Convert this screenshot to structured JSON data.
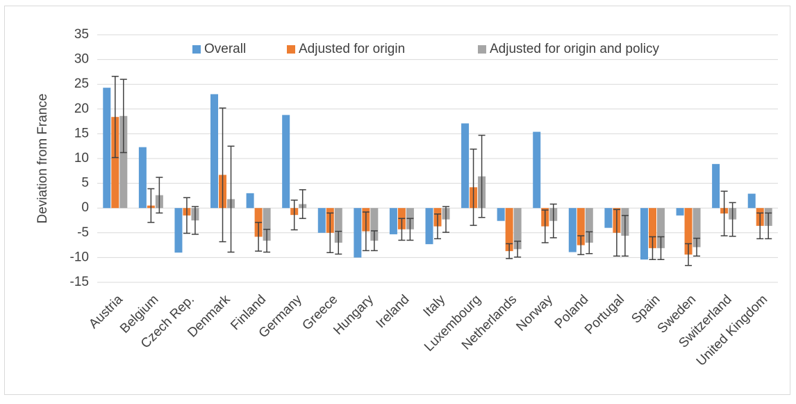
{
  "chart_data": {
    "type": "bar",
    "y_label": "Deviation from France",
    "categories": [
      "Austria",
      "Belgium",
      "Czech Rep.",
      "Denmark",
      "Finland",
      "Germany",
      "Greece",
      "Hungary",
      "Ireland",
      "Italy",
      "Luxembourg",
      "Netherlands",
      "Norway",
      "Poland",
      "Portugal",
      "Spain",
      "Sweden",
      "Switzerland",
      "United Kingdom"
    ],
    "series": [
      {
        "name": "Overall",
        "color": "#5b9bd5",
        "values": [
          24.3,
          12.3,
          -9,
          23,
          3,
          18.8,
          -5,
          -10,
          -5.3,
          -7.3,
          17.1,
          -2.6,
          15.4,
          -8.9,
          -4,
          -10.4,
          -1.5,
          8.9,
          2.9
        ]
      },
      {
        "name": "Adjusted for origin",
        "color": "#ed7d31",
        "values": [
          18.4,
          0.5,
          -1.5,
          6.7,
          -5.8,
          -1.4,
          -5,
          -4.7,
          -4.3,
          -3.7,
          4.2,
          -8.7,
          -3.7,
          -7.5,
          -5,
          -8.1,
          -9.4,
          -1.1,
          -3.6
        ],
        "errors": [
          8.2,
          3.4,
          3.6,
          13.5,
          2.9,
          3,
          4,
          3.9,
          2.2,
          2.5,
          7.7,
          1.5,
          3.3,
          1.9,
          4.7,
          2.3,
          2.2,
          4.5,
          2.6
        ]
      },
      {
        "name": "Adjusted for origin and policy",
        "color": "#a5a5a5",
        "values": [
          18.6,
          2.6,
          -2.5,
          1.8,
          -6.6,
          0.8,
          -7,
          -6.6,
          -4.3,
          -2.3,
          6.4,
          -8.3,
          -2.6,
          -7,
          -5.6,
          -8.1,
          -7.9,
          -2.3,
          -3.6
        ],
        "errors": [
          7.4,
          3.6,
          2.8,
          10.7,
          2.3,
          2.9,
          2.3,
          2,
          2.2,
          2.6,
          8.3,
          1.6,
          3.4,
          2.2,
          4.1,
          2.3,
          1.8,
          3.4,
          2.6
        ]
      }
    ],
    "ylim": [
      -15,
      35
    ],
    "yticks": [
      -15,
      -10,
      -5,
      0,
      5,
      10,
      15,
      20,
      25,
      30,
      35
    ],
    "grid": true,
    "legend": "top"
  }
}
